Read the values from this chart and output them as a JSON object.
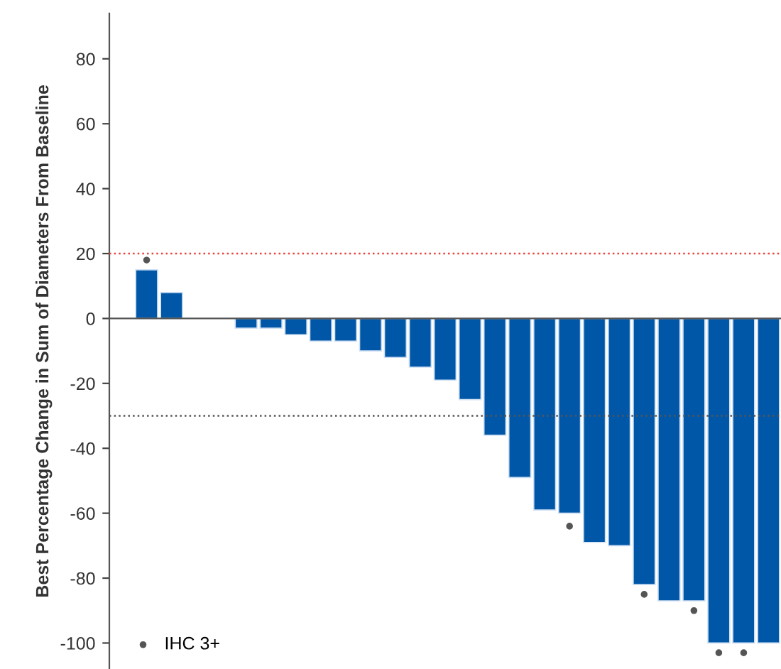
{
  "chart_data": {
    "type": "bar",
    "ylabel": "Best Percentage Change in Sum of Diameters From Baseline",
    "categories": [
      null,
      null,
      null,
      null,
      null,
      null,
      null,
      null,
      null,
      null,
      null,
      null,
      null,
      null,
      null,
      null,
      null,
      null,
      null,
      null,
      null,
      null,
      null,
      null,
      null,
      null,
      null
    ],
    "series": [
      {
        "color": "#0057a8",
        "values": [
          null,
          15,
          8,
          null,
          null,
          -3,
          -3,
          -5,
          -7,
          -7,
          -10,
          -12,
          -15,
          -19,
          -25,
          -36,
          -49,
          -59,
          -60,
          -69,
          -70,
          -82,
          -87,
          -87,
          -100,
          -100,
          -100
        ]
      },
      {
        "type": "scatter",
        "name": "IHC 3+",
        "color": "#555555",
        "marker": "circle",
        "values": [
          null,
          18,
          null,
          null,
          null,
          null,
          null,
          null,
          null,
          null,
          null,
          null,
          null,
          null,
          null,
          null,
          null,
          null,
          -64,
          null,
          null,
          -85,
          null,
          -90,
          -103,
          -103,
          null
        ]
      }
    ],
    "ylim": [
      -108,
      94
    ],
    "yticks": [
      -100,
      -80,
      -60,
      -40,
      -20,
      0,
      20,
      40,
      60,
      80
    ],
    "ref_lines": [
      {
        "axis": "y",
        "value": 20,
        "color": "#e8413c",
        "line_style": "dotted"
      },
      {
        "axis": "y",
        "value": -30,
        "color": "#555555",
        "line_style": "dotted"
      }
    ],
    "tick_labels": "y",
    "legend": "bottom left",
    "grid": false
  }
}
